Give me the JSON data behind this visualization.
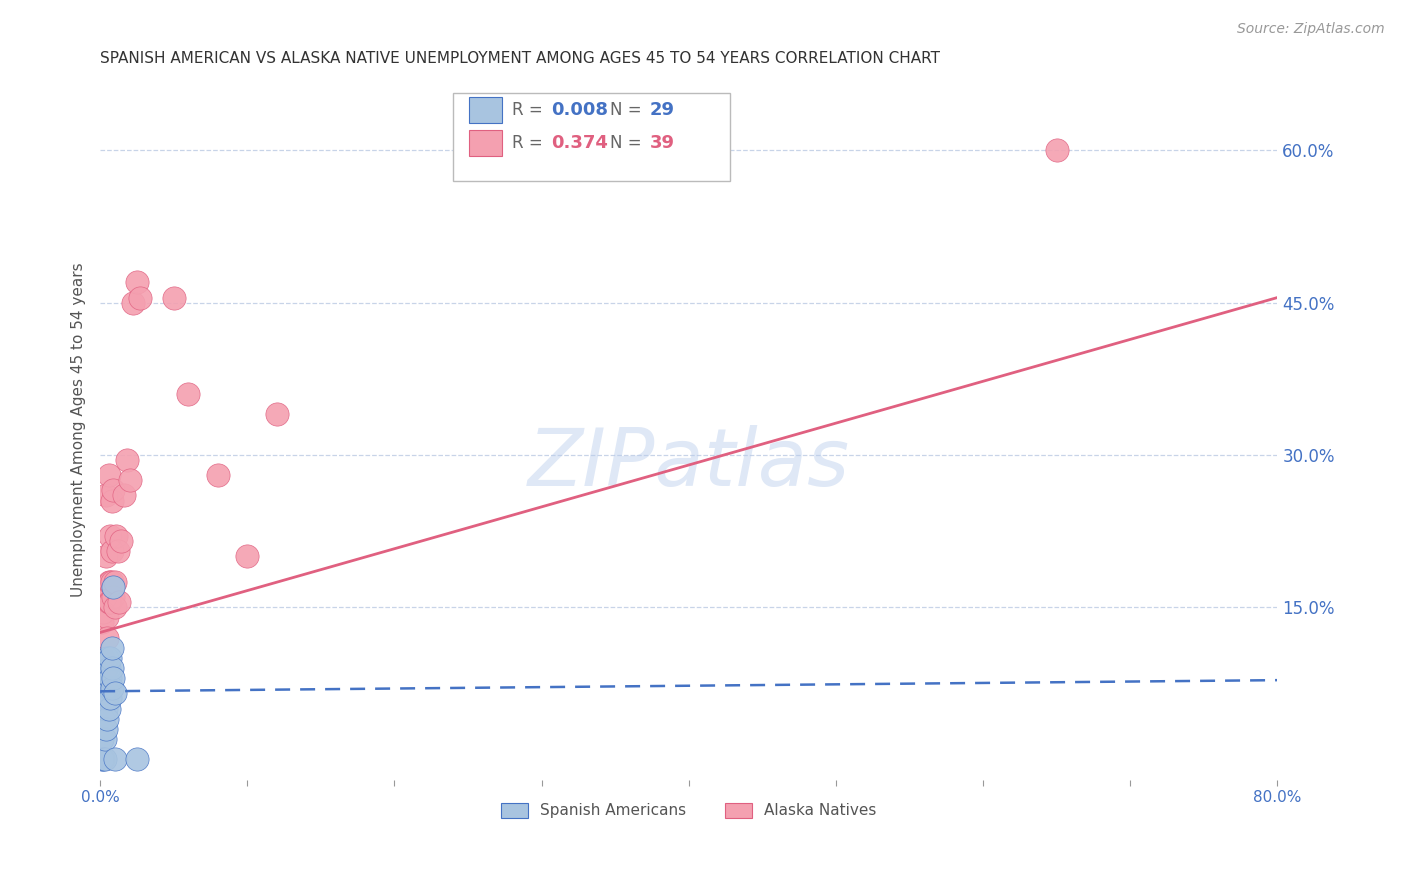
{
  "title": "SPANISH AMERICAN VS ALASKA NATIVE UNEMPLOYMENT AMONG AGES 45 TO 54 YEARS CORRELATION CHART",
  "source": "Source: ZipAtlas.com",
  "ylabel": "Unemployment Among Ages 45 to 54 years",
  "watermark": "ZIPatlas",
  "xlim": [
    0.0,
    0.8
  ],
  "ylim": [
    -0.02,
    0.67
  ],
  "xticks": [
    0.0,
    0.1,
    0.2,
    0.3,
    0.4,
    0.5,
    0.6,
    0.7,
    0.8
  ],
  "xticklabels": [
    "0.0%",
    "",
    "",
    "",
    "",
    "",
    "",
    "",
    "80.0%"
  ],
  "yticks_right": [
    0.15,
    0.3,
    0.45,
    0.6
  ],
  "ytick_right_labels": [
    "15.0%",
    "30.0%",
    "45.0%",
    "60.0%"
  ],
  "spanish_americans": {
    "x": [
      0.001,
      0.001,
      0.002,
      0.002,
      0.003,
      0.003,
      0.003,
      0.004,
      0.004,
      0.004,
      0.004,
      0.005,
      0.005,
      0.005,
      0.005,
      0.006,
      0.006,
      0.006,
      0.007,
      0.007,
      0.007,
      0.008,
      0.008,
      0.008,
      0.009,
      0.009,
      0.01,
      0.01,
      0.025
    ],
    "y": [
      0.0,
      0.02,
      0.0,
      0.04,
      0.0,
      0.02,
      0.06,
      0.03,
      0.05,
      0.07,
      0.09,
      0.04,
      0.06,
      0.08,
      0.1,
      0.05,
      0.07,
      0.09,
      0.06,
      0.08,
      0.1,
      0.07,
      0.09,
      0.11,
      0.08,
      0.17,
      0.065,
      0.0,
      0.0
    ],
    "color": "#a8c4e0",
    "R": 0.008,
    "N": 29,
    "line_color": "#4472c4",
    "line_style": "--",
    "line_start_x": 0.0,
    "line_start_y": 0.067,
    "line_end_x": 0.8,
    "line_end_y": 0.078
  },
  "alaska_natives": {
    "x": [
      0.001,
      0.002,
      0.002,
      0.003,
      0.003,
      0.004,
      0.004,
      0.005,
      0.005,
      0.005,
      0.006,
      0.006,
      0.006,
      0.007,
      0.007,
      0.007,
      0.008,
      0.008,
      0.008,
      0.009,
      0.009,
      0.01,
      0.01,
      0.011,
      0.012,
      0.013,
      0.014,
      0.016,
      0.018,
      0.02,
      0.022,
      0.025,
      0.027,
      0.05,
      0.06,
      0.08,
      0.1,
      0.12,
      0.65
    ],
    "y": [
      0.135,
      0.1,
      0.145,
      0.08,
      0.16,
      0.2,
      0.26,
      0.14,
      0.17,
      0.12,
      0.155,
      0.175,
      0.28,
      0.155,
      0.175,
      0.22,
      0.175,
      0.205,
      0.255,
      0.16,
      0.265,
      0.15,
      0.175,
      0.22,
      0.205,
      0.155,
      0.215,
      0.26,
      0.295,
      0.275,
      0.45,
      0.47,
      0.455,
      0.455,
      0.36,
      0.28,
      0.2,
      0.34,
      0.6
    ],
    "color": "#f4a0b0",
    "R": 0.374,
    "N": 39,
    "line_color": "#e06080",
    "line_style": "-",
    "line_start_x": 0.0,
    "line_start_y": 0.125,
    "line_end_x": 0.8,
    "line_end_y": 0.455
  },
  "title_fontsize": 11,
  "axis_color": "#4472c4",
  "grid_color": "#c8d4e8",
  "background_color": "#ffffff",
  "legend_r_color_spanish": "#4472c4",
  "legend_r_color_alaska": "#e06080"
}
